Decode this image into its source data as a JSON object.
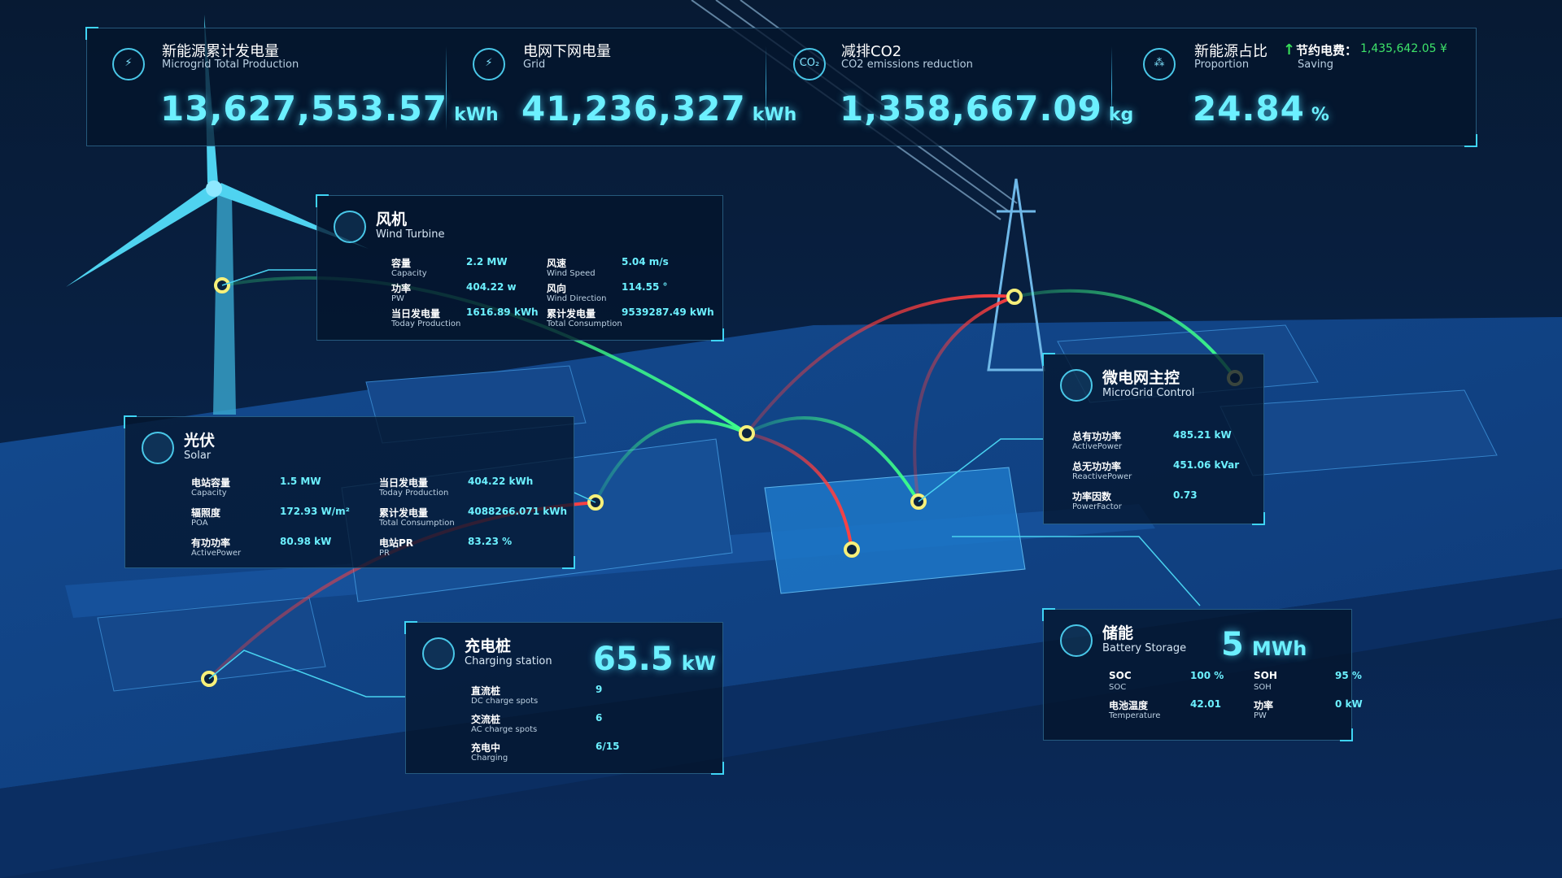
{
  "header": {
    "stats": [
      {
        "title": "新能源累计发电量",
        "subtitle": "Microgrid Total Production",
        "value": "13,627,553.57",
        "unit": "kWh"
      },
      {
        "title": "电网下网电量",
        "subtitle": "Grid",
        "value": "41,236,327",
        "unit": "kWh"
      },
      {
        "title": "减排CO2",
        "subtitle": "CO2 emissions reduction",
        "value": "1,358,667.09",
        "unit": "kg",
        "icon": "CO₂"
      },
      {
        "title": "新能源占比",
        "subtitle": "Proportion",
        "value": "24.84",
        "unit": "%"
      }
    ],
    "saving": {
      "label": "节约电费：",
      "value": "1,435,642.05 ¥",
      "subtitle": "Saving"
    }
  },
  "panels": {
    "wind": {
      "title": "风机",
      "subtitle": "Wind Turbine",
      "columns": [
        [
          {
            "label": "容量",
            "sub": "Capacity",
            "value": "2.2 MW"
          },
          {
            "label": "功率",
            "sub": "PW",
            "value": "404.22 w"
          },
          {
            "label": "当日发电量",
            "sub": "Today Production",
            "value": "1616.89 kWh"
          }
        ],
        [
          {
            "label": "风速",
            "sub": "Wind Speed",
            "value": "5.04 m/s"
          },
          {
            "label": "风向",
            "sub": "Wind Direction",
            "value": "114.55 °"
          },
          {
            "label": "累计发电量",
            "sub": "Total Consumption",
            "value": "9539287.49 kWh"
          }
        ]
      ]
    },
    "solar": {
      "title": "光伏",
      "subtitle": "Solar",
      "columns": [
        [
          {
            "label": "电站容量",
            "sub": "Capacity",
            "value": "1.5 MW"
          },
          {
            "label": "辐照度",
            "sub": "POA",
            "value": "172.93 W/m²"
          },
          {
            "label": "有功功率",
            "sub": "ActivePower",
            "value": "80.98 kW"
          }
        ],
        [
          {
            "label": "当日发电量",
            "sub": "Today Production",
            "value": "404.22 kWh"
          },
          {
            "label": "累计发电量",
            "sub": "Total Consumption",
            "value": "4088266.071 kWh"
          },
          {
            "label": "电站PR",
            "sub": "PR",
            "value": "83.23 %"
          }
        ]
      ]
    },
    "microgrid": {
      "title": "微电网主控",
      "subtitle": "MicroGrid Control",
      "columns": [
        [
          {
            "label": "总有功功率",
            "sub": "ActivePower",
            "value": "485.21 kW"
          },
          {
            "label": "总无功功率",
            "sub": "ReactivePower",
            "value": "451.06 kVar"
          },
          {
            "label": "功率因数",
            "sub": "PowerFactor",
            "value": "0.73"
          }
        ]
      ]
    },
    "charging": {
      "title": "充电桩",
      "subtitle": "Charging station",
      "big_value": "65.5",
      "big_unit": "kW",
      "columns": [
        [
          {
            "label": "直流桩",
            "sub": "DC charge spots",
            "value": "9"
          },
          {
            "label": "交流桩",
            "sub": "AC charge spots",
            "value": "6"
          },
          {
            "label": "充电中",
            "sub": "Charging",
            "value": "6/15"
          }
        ]
      ]
    },
    "battery": {
      "title": "储能",
      "subtitle": "Battery Storage",
      "big_value": "5",
      "big_unit": "MWh",
      "columns": [
        [
          {
            "label": "SOC",
            "sub": "SOC",
            "value": "100 %"
          },
          {
            "label": "电池温度",
            "sub": "Temperature",
            "value": "42.01"
          }
        ],
        [
          {
            "label": "SOH",
            "sub": "SOH",
            "value": "95 %"
          },
          {
            "label": "功率",
            "sub": "PW",
            "value": "0 kW"
          }
        ]
      ]
    }
  }
}
